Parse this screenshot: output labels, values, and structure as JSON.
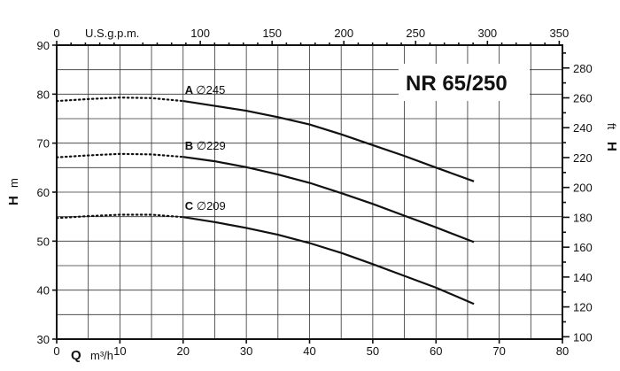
{
  "chart_data": {
    "type": "line",
    "title": "NR 65/250",
    "x_axis": {
      "symbol": "Q",
      "unit": "m³/h",
      "range": [
        0,
        80
      ],
      "ticks": [
        0,
        10,
        20,
        30,
        40,
        50,
        60,
        70,
        80
      ]
    },
    "x2_axis": {
      "unit": "U.S.g.p.m.",
      "range": [
        0,
        350
      ],
      "ticks": [
        0,
        100,
        150,
        200,
        250,
        300,
        350
      ]
    },
    "y_axis": {
      "symbol": "H",
      "unit": "m",
      "range": [
        30,
        90
      ],
      "ticks": [
        30,
        40,
        50,
        60,
        70,
        80,
        90
      ]
    },
    "y2_axis": {
      "symbol": "H",
      "unit": "ft",
      "ticks": [
        100,
        120,
        140,
        160,
        180,
        200,
        220,
        240,
        260,
        280
      ]
    },
    "grid": true,
    "series": [
      {
        "name": "A",
        "diameter": "245",
        "dotted": [
          [
            0,
            78.6
          ],
          [
            5,
            79.0
          ],
          [
            10,
            79.3
          ],
          [
            15,
            79.2
          ],
          [
            20,
            78.6
          ]
        ],
        "solid": [
          [
            20,
            78.6
          ],
          [
            25,
            77.6
          ],
          [
            30,
            76.6
          ],
          [
            35,
            75.3
          ],
          [
            40,
            73.8
          ],
          [
            45,
            71.8
          ],
          [
            50,
            69.6
          ],
          [
            55,
            67.4
          ],
          [
            60,
            65.0
          ],
          [
            66,
            62.2
          ]
        ]
      },
      {
        "name": "B",
        "diameter": "229",
        "dotted": [
          [
            0,
            67.1
          ],
          [
            5,
            67.5
          ],
          [
            10,
            67.8
          ],
          [
            15,
            67.7
          ],
          [
            20,
            67.2
          ]
        ],
        "solid": [
          [
            20,
            67.2
          ],
          [
            25,
            66.3
          ],
          [
            30,
            65.1
          ],
          [
            35,
            63.6
          ],
          [
            40,
            61.9
          ],
          [
            45,
            59.8
          ],
          [
            50,
            57.6
          ],
          [
            55,
            55.2
          ],
          [
            60,
            52.8
          ],
          [
            66,
            49.8
          ]
        ]
      },
      {
        "name": "C",
        "diameter": "209",
        "dotted": [
          [
            0,
            54.7
          ],
          [
            5,
            55.1
          ],
          [
            10,
            55.4
          ],
          [
            15,
            55.4
          ],
          [
            20,
            54.9
          ]
        ],
        "solid": [
          [
            20,
            54.9
          ],
          [
            25,
            53.9
          ],
          [
            30,
            52.7
          ],
          [
            35,
            51.3
          ],
          [
            40,
            49.6
          ],
          [
            45,
            47.6
          ],
          [
            50,
            45.3
          ],
          [
            55,
            42.9
          ],
          [
            60,
            40.5
          ],
          [
            66,
            37.2
          ]
        ]
      }
    ]
  }
}
